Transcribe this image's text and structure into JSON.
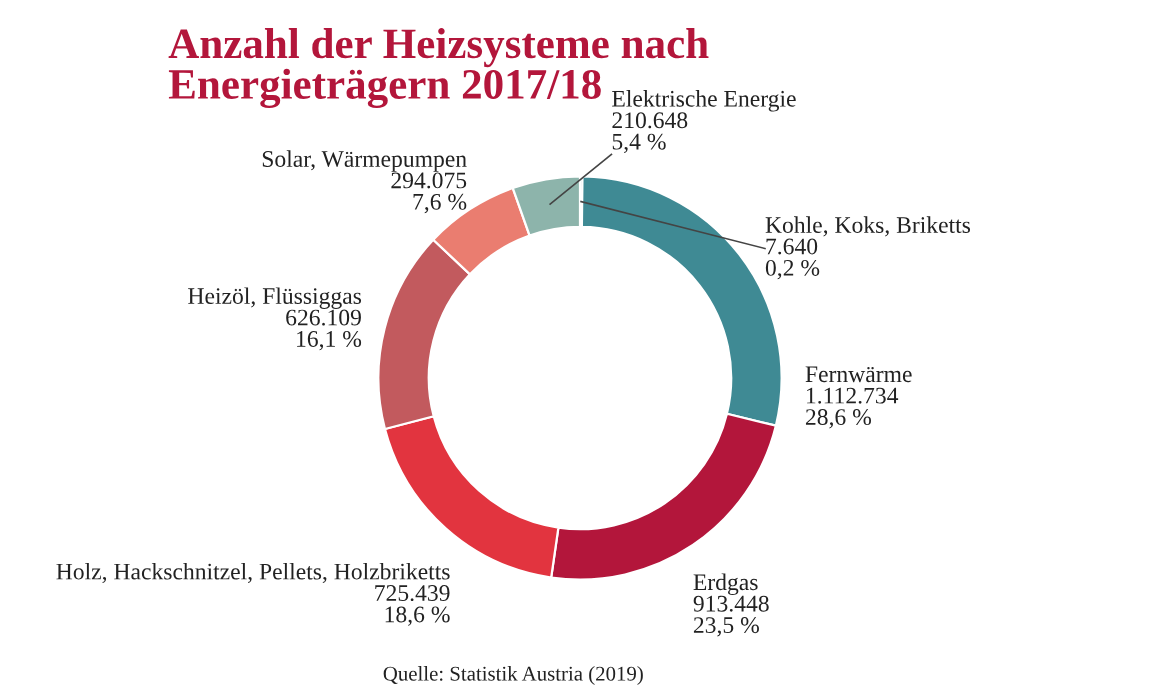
{
  "chart_data": {
    "type": "donut",
    "title": "Anzahl der Heizsysteme nach\nEnergieträgern 2017/18",
    "categories": [
      "Kohle, Koks, Briketts",
      "Fernwärme",
      "Erdgas",
      "Holz, Hackschnitzel, Pellets, Holzbriketts",
      "Heizöl, Flüssiggas",
      "Solar, Wärmepumpen",
      "Elektrische Energie"
    ],
    "values": [
      7640,
      1112734,
      913448,
      725439,
      626109,
      294075,
      210648
    ],
    "value_labels": [
      "7.640\n0,2 %",
      "1.112.734\n28,6 %",
      "913.448\n23,5 %",
      "725.439\n18,6 %",
      "626.109\n16,1 %",
      "294.075\n7,6 %",
      "210.648\n5,4 %"
    ],
    "colors": [
      "#2f6f77",
      "#3f8a94",
      "#b3163b",
      "#e2343f",
      "#c25a5e",
      "#ea7d70",
      "#8db4ab"
    ],
    "annotations": [
      "Quelle: Statistik Austria (2019)"
    ]
  }
}
